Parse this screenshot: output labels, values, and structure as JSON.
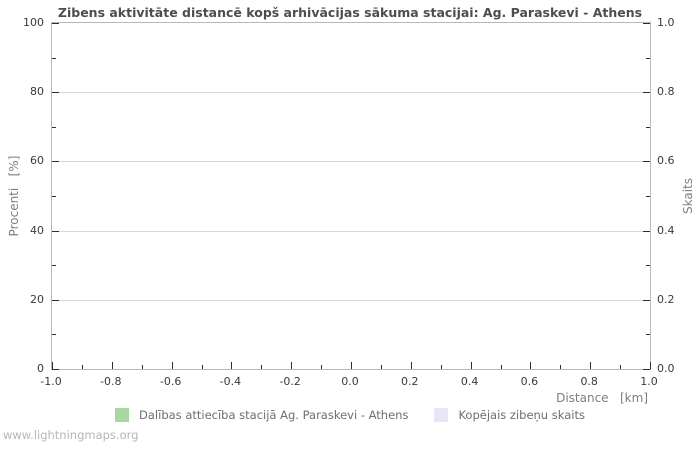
{
  "page": {
    "watermark": "www.lightningmaps.org"
  },
  "chart_data": {
    "type": "bar",
    "title": "Zibens aktivitāte distancē kopš arhivācijas sākuma stacijai: Ag. Paraskevi - Athens",
    "xlabel": "Distance   [km]",
    "ylabel_left": "Procenti   [%]",
    "ylabel_right": "Skaits",
    "xlim": [
      -1.0,
      1.0
    ],
    "ylim_left": [
      0,
      100
    ],
    "ylim_right": [
      0.0,
      1.0
    ],
    "x_ticks": [
      "-1.0",
      "-0.8",
      "-0.6",
      "-0.4",
      "-0.2",
      "0.0",
      "0.2",
      "0.4",
      "0.6",
      "0.8",
      "1.0"
    ],
    "y_left_ticks": [
      "0",
      "20",
      "40",
      "60",
      "80",
      "100"
    ],
    "y_right_ticks": [
      "0.0",
      "0.2",
      "0.4",
      "0.6",
      "0.8",
      "1.0"
    ],
    "grid": "horizontal-only",
    "legend_position": "bottom",
    "series": [
      {
        "name": "Dalības attiecība stacijā Ag. Paraskevi - Athens",
        "color": "#a9d7a3",
        "axis": "left",
        "values": []
      },
      {
        "name": "Kopējais zibeņu skaits",
        "color": "#e6e6f7",
        "axis": "right",
        "values": []
      }
    ]
  },
  "legend": {
    "items": [
      {
        "label": "Dalības attiecība stacijā Ag. Paraskevi - Athens",
        "color": "#a9d7a3"
      },
      {
        "label": "Kopējais zibeņu skaits",
        "color": "#e6e6f7"
      }
    ]
  },
  "colors": {
    "background": "#ffffff",
    "plot_border": "#b8b8b8",
    "gridline": "#d7d7d7",
    "tick_mark": "#2e2e2e",
    "title_text": "#4d4d4d",
    "tick_label_text": "#3a3a3a",
    "axis_title_text": "#7e7e7e",
    "legend_text": "#6e6e6e",
    "watermark_text": "#b6b6b6"
  }
}
